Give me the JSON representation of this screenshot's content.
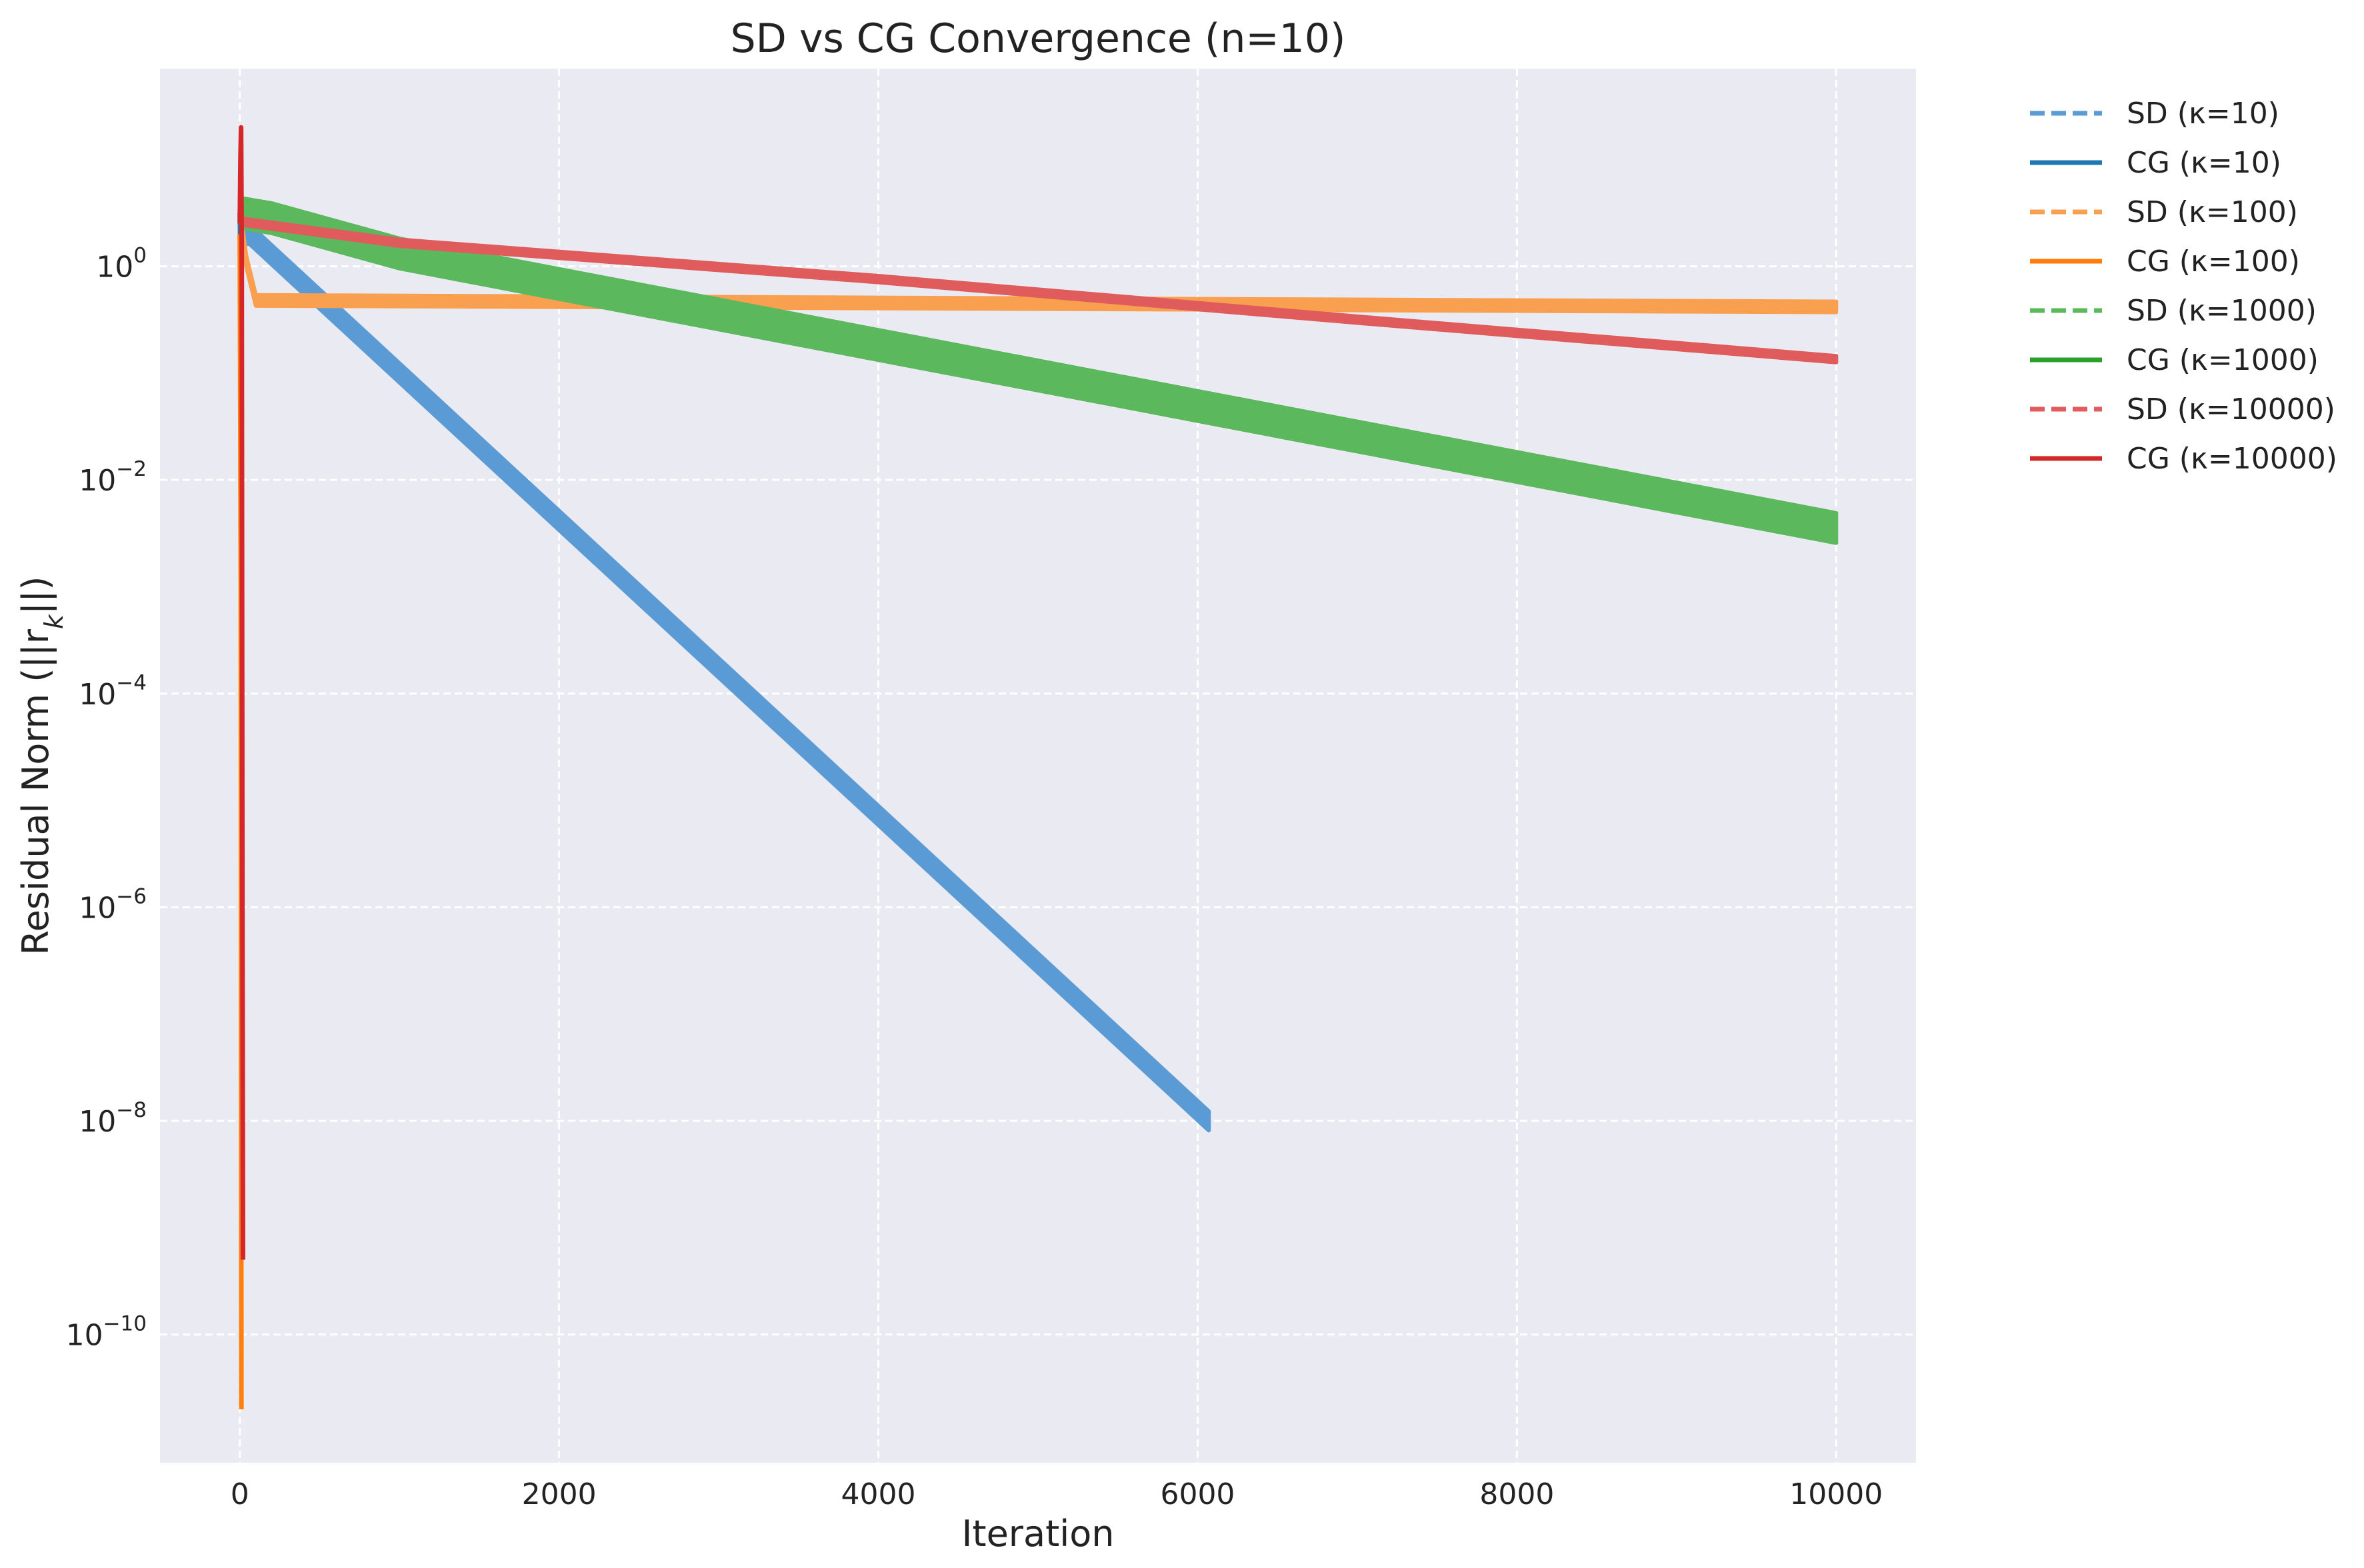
{
  "chart_data": {
    "type": "line",
    "title": "SD vs CG Convergence (n=10)",
    "xlabel": "Iteration",
    "ylabel_main": "Residual Norm (||r",
    "ylabel_sub": "k",
    "ylabel_end": "||)",
    "xlim": [
      -500,
      10500
    ],
    "ylim_log10": [
      -11.2,
      1.85
    ],
    "y_scale": "log",
    "grid": true,
    "legend_position": "outside-right",
    "x_ticks": [
      {
        "value": 0,
        "label": "0"
      },
      {
        "value": 2000,
        "label": "2000"
      },
      {
        "value": 4000,
        "label": "4000"
      },
      {
        "value": 6000,
        "label": "6000"
      },
      {
        "value": 8000,
        "label": "8000"
      },
      {
        "value": 10000,
        "label": "10000"
      }
    ],
    "y_ticks": [
      {
        "exp": 0,
        "base": "10",
        "power": "0"
      },
      {
        "exp": -2,
        "base": "10",
        "power": "−2"
      },
      {
        "exp": -4,
        "base": "10",
        "power": "−4"
      },
      {
        "exp": -6,
        "base": "10",
        "power": "−6"
      },
      {
        "exp": -8,
        "base": "10",
        "power": "−8"
      },
      {
        "exp": -10,
        "base": "10",
        "power": "−10"
      }
    ],
    "series": [
      {
        "name": "SD (κ=10)",
        "color": "#5b9bd5",
        "dash": true,
        "band": 0.09,
        "points": [
          [
            0,
            0.3
          ],
          [
            60,
            0.3
          ],
          [
            6070,
            -8.0
          ]
        ]
      },
      {
        "name": "CG (κ=10)",
        "color": "#1f77b4",
        "dash": false,
        "band": 0,
        "points": [
          [
            0,
            0.5
          ],
          [
            10,
            -0.4
          ]
        ]
      },
      {
        "name": "SD (κ=100)",
        "color": "#f8a050",
        "dash": true,
        "band": 0.05,
        "points": [
          [
            0,
            0.5
          ],
          [
            40,
            0.05
          ],
          [
            100,
            -0.32
          ],
          [
            10000,
            -0.38
          ]
        ]
      },
      {
        "name": "CG (κ=100)",
        "color": "#ff7f0e",
        "dash": false,
        "band": 0,
        "points": [
          [
            0,
            0.3
          ],
          [
            6,
            -3
          ],
          [
            10,
            -10.7
          ]
        ]
      },
      {
        "name": "SD (κ=1000)",
        "color": "#5cb85c",
        "dash": true,
        "band": 0.14,
        "points": [
          [
            0,
            0.5
          ],
          [
            200,
            0.45
          ],
          [
            1000,
            0.12
          ],
          [
            10000,
            -2.45
          ]
        ]
      },
      {
        "name": "CG (κ=1000)",
        "color": "#2ca02c",
        "dash": false,
        "band": 0,
        "points": [
          [
            0,
            0.5
          ],
          [
            8,
            0.4
          ]
        ]
      },
      {
        "name": "SD (κ=10000)",
        "color": "#e05c5c",
        "dash": true,
        "band": 0.03,
        "points": [
          [
            0,
            0.42
          ],
          [
            1000,
            0.22
          ],
          [
            4000,
            -0.12
          ],
          [
            7000,
            -0.5
          ],
          [
            10000,
            -0.87
          ]
        ]
      },
      {
        "name": "CG (κ=10000)",
        "color": "#d62728",
        "dash": false,
        "band": 0,
        "points": [
          [
            0,
            0.4
          ],
          [
            4,
            1.0
          ],
          [
            8,
            1.3
          ],
          [
            12,
            0.2
          ],
          [
            16,
            -6
          ],
          [
            20,
            -9.3
          ]
        ]
      }
    ]
  }
}
